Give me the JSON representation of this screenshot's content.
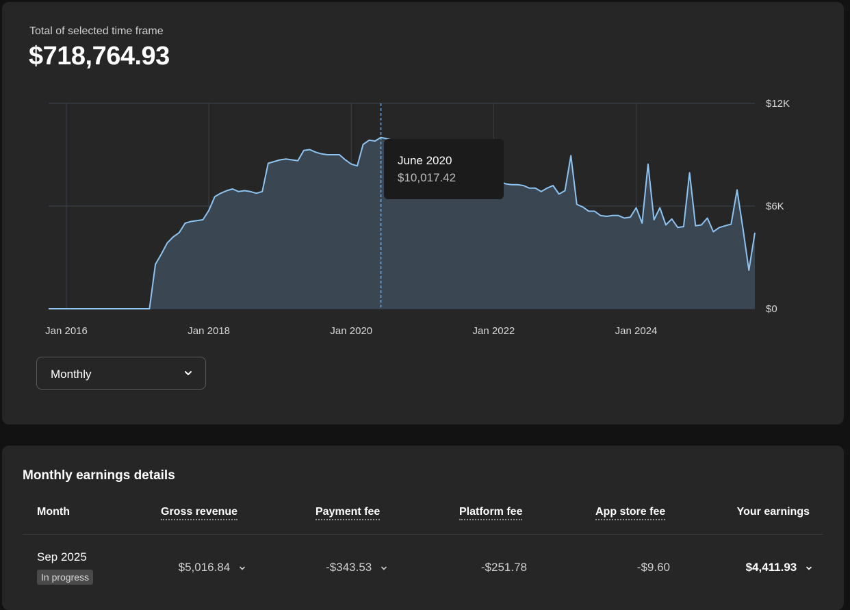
{
  "summary": {
    "total_label": "Total of selected time frame",
    "total_value": "$718,764.93"
  },
  "chart_data": {
    "type": "area",
    "x_start": "2015-10",
    "x_end": "2025-09",
    "x_ticks": [
      {
        "date": "2016-01",
        "label": "Jan 2016"
      },
      {
        "date": "2018-01",
        "label": "Jan 2018"
      },
      {
        "date": "2020-01",
        "label": "Jan 2020"
      },
      {
        "date": "2022-01",
        "label": "Jan 2022"
      },
      {
        "date": "2024-01",
        "label": "Jan 2024"
      }
    ],
    "y_ticks": [
      {
        "value": 0,
        "label": "$0"
      },
      {
        "value": 6000,
        "label": "$6K"
      },
      {
        "value": 12000,
        "label": "$12K"
      }
    ],
    "ylim": [
      0,
      12000
    ],
    "grid": true,
    "line_color": "#8ec4f2",
    "fill_color": "#3a4652",
    "points": [
      [
        "2015-10",
        0
      ],
      [
        "2016-04",
        0
      ],
      [
        "2016-10",
        0
      ],
      [
        "2017-03",
        0
      ],
      [
        "2017-04",
        2600
      ],
      [
        "2017-05",
        3200
      ],
      [
        "2017-06",
        3850
      ],
      [
        "2017-07",
        4200
      ],
      [
        "2017-08",
        4450
      ],
      [
        "2017-09",
        5000
      ],
      [
        "2017-10",
        5100
      ],
      [
        "2017-11",
        5150
      ],
      [
        "2017-12",
        5200
      ],
      [
        "2018-01",
        5750
      ],
      [
        "2018-02",
        6550
      ],
      [
        "2018-03",
        6750
      ],
      [
        "2018-04",
        6900
      ],
      [
        "2018-05",
        7000
      ],
      [
        "2018-06",
        6850
      ],
      [
        "2018-07",
        6900
      ],
      [
        "2018-08",
        6850
      ],
      [
        "2018-09",
        6750
      ],
      [
        "2018-10",
        6850
      ],
      [
        "2018-11",
        8500
      ],
      [
        "2018-12",
        8600
      ],
      [
        "2019-01",
        8700
      ],
      [
        "2019-02",
        8750
      ],
      [
        "2019-03",
        8700
      ],
      [
        "2019-04",
        8650
      ],
      [
        "2019-05",
        9250
      ],
      [
        "2019-06",
        9300
      ],
      [
        "2019-07",
        9150
      ],
      [
        "2019-08",
        9050
      ],
      [
        "2019-09",
        9000
      ],
      [
        "2019-10",
        9000
      ],
      [
        "2019-11",
        9000
      ],
      [
        "2019-12",
        8700
      ],
      [
        "2020-01",
        8450
      ],
      [
        "2020-02",
        8350
      ],
      [
        "2020-03",
        9600
      ],
      [
        "2020-04",
        9850
      ],
      [
        "2020-05",
        9800
      ],
      [
        "2020-06",
        10017.42
      ],
      [
        "2021-12",
        8500
      ],
      [
        "2022-01",
        7450
      ],
      [
        "2022-02",
        7450
      ],
      [
        "2022-03",
        7300
      ],
      [
        "2022-04",
        7250
      ],
      [
        "2022-05",
        7250
      ],
      [
        "2022-06",
        7200
      ],
      [
        "2022-07",
        7050
      ],
      [
        "2022-08",
        7050
      ],
      [
        "2022-09",
        6850
      ],
      [
        "2022-10",
        7050
      ],
      [
        "2022-11",
        7200
      ],
      [
        "2022-12",
        6700
      ],
      [
        "2023-01",
        6900
      ],
      [
        "2023-02",
        8950
      ],
      [
        "2023-03",
        6100
      ],
      [
        "2023-04",
        5950
      ],
      [
        "2023-05",
        5700
      ],
      [
        "2023-06",
        5700
      ],
      [
        "2023-07",
        5450
      ],
      [
        "2023-08",
        5400
      ],
      [
        "2023-09",
        5450
      ],
      [
        "2023-10",
        5450
      ],
      [
        "2023-11",
        5300
      ],
      [
        "2023-12",
        5350
      ],
      [
        "2024-01",
        5900
      ],
      [
        "2024-02",
        5000
      ],
      [
        "2024-03",
        8450
      ],
      [
        "2024-04",
        5200
      ],
      [
        "2024-05",
        5900
      ],
      [
        "2024-06",
        4900
      ],
      [
        "2024-07",
        5250
      ],
      [
        "2024-08",
        4750
      ],
      [
        "2024-09",
        4800
      ],
      [
        "2024-10",
        7950
      ],
      [
        "2024-11",
        4850
      ],
      [
        "2024-12",
        4900
      ],
      [
        "2025-01",
        5300
      ],
      [
        "2025-02",
        4500
      ],
      [
        "2025-03",
        4750
      ],
      [
        "2025-04",
        4850
      ],
      [
        "2025-05",
        4950
      ],
      [
        "2025-06",
        6950
      ],
      [
        "2025-07",
        4650
      ],
      [
        "2025-08",
        2250
      ],
      [
        "2025-09",
        4450
      ]
    ],
    "hover": {
      "date": "2020-06",
      "label": "June 2020",
      "value_label": "$10,017.42"
    }
  },
  "range_select": {
    "selected": "Monthly"
  },
  "details": {
    "title": "Monthly earnings details",
    "columns": [
      "Month",
      "Gross revenue",
      "Payment fee",
      "Platform fee",
      "App store fee",
      "Your earnings"
    ],
    "rows": [
      {
        "month": "Sep 2025",
        "status": "In progress",
        "gross": "$5,016.84",
        "payment_fee": "-$343.53",
        "platform_fee": "-$251.78",
        "app_store_fee": "-$9.60",
        "earnings": "$4,411.93"
      }
    ]
  }
}
